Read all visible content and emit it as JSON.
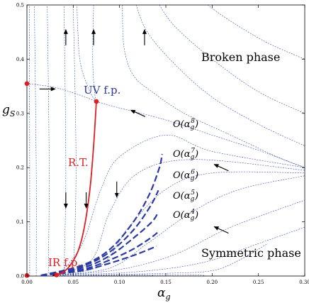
{
  "chart_data": {
    "type": "line",
    "xlabel": "α",
    "xlabel_sub": "g",
    "ylabel": "g",
    "ylabel_sub": "S",
    "xlim": [
      0,
      0.3
    ],
    "ylim": [
      0,
      0.5
    ],
    "xticks": [
      "0.00",
      "0.05",
      "0.10",
      "0.15",
      "0.20",
      "0.25",
      "0.30"
    ],
    "yticks": [
      "0.0",
      "0.1",
      "0.2",
      "0.3",
      "0.4",
      "0.5"
    ],
    "xtick_values": [
      0,
      0.05,
      0.1,
      0.15,
      0.2,
      0.25,
      0.3
    ],
    "ytick_values": [
      0,
      0.1,
      0.2,
      0.3,
      0.4,
      0.5
    ],
    "region_labels": {
      "broken": "Broken phase",
      "symmetric": "Symmetric phase"
    },
    "fixed_points": [
      {
        "label": "UV f.p.",
        "x": 0.075,
        "y": 0.322
      },
      {
        "label": "IR f.p.",
        "x": 0.032,
        "y": 0.002
      },
      {
        "label": "",
        "x": 0.0,
        "y": 0.355
      },
      {
        "label": "",
        "x": 0.0,
        "y": 0.001
      }
    ],
    "renormalized_trajectory": {
      "label": "R.T.",
      "points": [
        [
          0.075,
          0.322
        ],
        [
          0.072,
          0.24
        ],
        [
          0.068,
          0.16
        ],
        [
          0.062,
          0.09
        ],
        [
          0.055,
          0.045
        ],
        [
          0.046,
          0.018
        ],
        [
          0.038,
          0.006
        ],
        [
          0.032,
          0.002
        ]
      ]
    },
    "approximations": [
      {
        "order": "8",
        "points": [
          [
            0.015,
            0.001
          ],
          [
            0.06,
            0.02
          ],
          [
            0.09,
            0.05
          ],
          [
            0.115,
            0.1
          ],
          [
            0.132,
            0.15
          ],
          [
            0.143,
            0.2
          ],
          [
            0.146,
            0.225
          ]
        ]
      },
      {
        "order": "7",
        "points": [
          [
            0.015,
            0.001
          ],
          [
            0.06,
            0.018
          ],
          [
            0.09,
            0.045
          ],
          [
            0.115,
            0.085
          ],
          [
            0.133,
            0.128
          ],
          [
            0.142,
            0.158
          ]
        ]
      },
      {
        "order": "6",
        "points": [
          [
            0.015,
            0.001
          ],
          [
            0.06,
            0.015
          ],
          [
            0.09,
            0.038
          ],
          [
            0.115,
            0.07
          ],
          [
            0.135,
            0.1
          ],
          [
            0.142,
            0.118
          ]
        ]
      },
      {
        "order": "5",
        "points": [
          [
            0.015,
            0.001
          ],
          [
            0.06,
            0.012
          ],
          [
            0.09,
            0.03
          ],
          [
            0.115,
            0.05
          ],
          [
            0.135,
            0.072
          ],
          [
            0.142,
            0.082
          ]
        ]
      },
      {
        "order": "4",
        "points": [
          [
            0.015,
            0.001
          ],
          [
            0.06,
            0.01
          ],
          [
            0.09,
            0.024
          ],
          [
            0.115,
            0.038
          ],
          [
            0.133,
            0.05
          ],
          [
            0.14,
            0.055
          ]
        ]
      }
    ],
    "flow_lines": [
      [
        [
          0.003,
          0.0
        ],
        [
          0.003,
          0.2
        ],
        [
          0.0025,
          0.5
        ]
      ],
      [
        [
          0.01,
          0.0
        ],
        [
          0.01,
          0.2
        ],
        [
          0.008,
          0.5
        ]
      ],
      [
        [
          0.023,
          0.0
        ],
        [
          0.024,
          0.2
        ],
        [
          0.022,
          0.5
        ]
      ],
      [
        [
          0.04,
          0.0
        ],
        [
          0.042,
          0.2
        ],
        [
          0.04,
          0.5
        ]
      ],
      [
        [
          0.05,
          0.0
        ],
        [
          0.053,
          0.2
        ],
        [
          0.05,
          0.5
        ]
      ],
      [
        [
          0.072,
          0.5
        ],
        [
          0.071,
          0.4
        ],
        [
          0.073,
          0.34
        ],
        [
          0.075,
          0.322
        ]
      ],
      [
        [
          0.0,
          0.355
        ],
        [
          0.03,
          0.348
        ],
        [
          0.055,
          0.335
        ],
        [
          0.075,
          0.322
        ]
      ],
      [
        [
          0.075,
          0.322
        ],
        [
          0.1,
          0.31
        ],
        [
          0.15,
          0.288
        ],
        [
          0.2,
          0.26
        ],
        [
          0.25,
          0.232
        ],
        [
          0.3,
          0.2
        ]
      ],
      [
        [
          0.075,
          0.322
        ],
        [
          0.068,
          0.34
        ],
        [
          0.058,
          0.39
        ],
        [
          0.055,
          0.45
        ],
        [
          0.054,
          0.5
        ]
      ],
      [
        [
          0.103,
          0.5
        ],
        [
          0.105,
          0.42
        ],
        [
          0.115,
          0.37
        ],
        [
          0.135,
          0.34
        ],
        [
          0.17,
          0.3
        ],
        [
          0.22,
          0.26
        ],
        [
          0.27,
          0.22
        ],
        [
          0.3,
          0.2
        ]
      ],
      [
        [
          0.118,
          0.5
        ],
        [
          0.13,
          0.45
        ],
        [
          0.16,
          0.39
        ],
        [
          0.2,
          0.33
        ],
        [
          0.25,
          0.28
        ],
        [
          0.3,
          0.24
        ]
      ],
      [
        [
          0.143,
          0.5
        ],
        [
          0.16,
          0.46
        ],
        [
          0.2,
          0.4
        ],
        [
          0.25,
          0.34
        ],
        [
          0.3,
          0.3
        ]
      ],
      [
        [
          0.195,
          0.5
        ],
        [
          0.22,
          0.47
        ],
        [
          0.26,
          0.43
        ],
        [
          0.3,
          0.4
        ]
      ],
      [
        [
          0.035,
          0.003
        ],
        [
          0.06,
          0.06
        ],
        [
          0.08,
          0.16
        ],
        [
          0.1,
          0.22
        ],
        [
          0.15,
          0.26
        ],
        [
          0.2,
          0.23
        ],
        [
          0.3,
          0.2
        ]
      ],
      [
        [
          0.03,
          0.001
        ],
        [
          0.07,
          0.03
        ],
        [
          0.09,
          0.12
        ],
        [
          0.12,
          0.19
        ],
        [
          0.18,
          0.215
        ],
        [
          0.3,
          0.195
        ]
      ],
      [
        [
          0.03,
          0.001
        ],
        [
          0.08,
          0.02
        ],
        [
          0.11,
          0.09
        ],
        [
          0.15,
          0.16
        ],
        [
          0.2,
          0.19
        ],
        [
          0.3,
          0.19
        ]
      ],
      [
        [
          0.03,
          0.001
        ],
        [
          0.09,
          0.015
        ],
        [
          0.13,
          0.06
        ],
        [
          0.18,
          0.12
        ],
        [
          0.23,
          0.16
        ],
        [
          0.3,
          0.185
        ]
      ],
      [
        [
          0.03,
          0.001
        ],
        [
          0.1,
          0.012
        ],
        [
          0.16,
          0.04
        ],
        [
          0.22,
          0.09
        ],
        [
          0.3,
          0.14
        ]
      ],
      [
        [
          0.03,
          0.001
        ],
        [
          0.12,
          0.008
        ],
        [
          0.19,
          0.025
        ],
        [
          0.25,
          0.06
        ],
        [
          0.3,
          0.09
        ]
      ],
      [
        [
          0.03,
          0.001
        ],
        [
          0.15,
          0.005
        ],
        [
          0.2,
          0.01
        ],
        [
          0.23,
          0.03
        ],
        [
          0.26,
          0.06
        ]
      ],
      [
        [
          0.03,
          0.0
        ],
        [
          0.17,
          0.002
        ],
        [
          0.195,
          0.0
        ]
      ],
      [
        [
          0.03,
          0.0
        ],
        [
          0.12,
          0.002
        ],
        [
          0.14,
          0.0
        ]
      ]
    ],
    "arrows": [
      {
        "x": 0.042,
        "y": 0.44,
        "dir": "up"
      },
      {
        "x": 0.072,
        "y": 0.44,
        "dir": "up"
      },
      {
        "x": 0.127,
        "y": 0.44,
        "dir": "up"
      },
      {
        "x": 0.022,
        "y": 0.345,
        "dir": "right"
      },
      {
        "x": 0.12,
        "y": 0.3,
        "dir": "upleft"
      },
      {
        "x": 0.21,
        "y": 0.2,
        "dir": "upleft"
      },
      {
        "x": 0.21,
        "y": 0.085,
        "dir": "upleft"
      },
      {
        "x": 0.042,
        "y": 0.14,
        "dir": "down"
      },
      {
        "x": 0.064,
        "y": 0.14,
        "dir": "down"
      },
      {
        "x": 0.097,
        "y": 0.16,
        "dir": "down"
      }
    ],
    "colors": {
      "flow": "#3c4fb4",
      "approx": "#2a3aa0",
      "trajectory": "#dd1e22",
      "fixed_point": "#dd1e22",
      "arrow": "#000000"
    },
    "grid": false,
    "legend": "none"
  }
}
